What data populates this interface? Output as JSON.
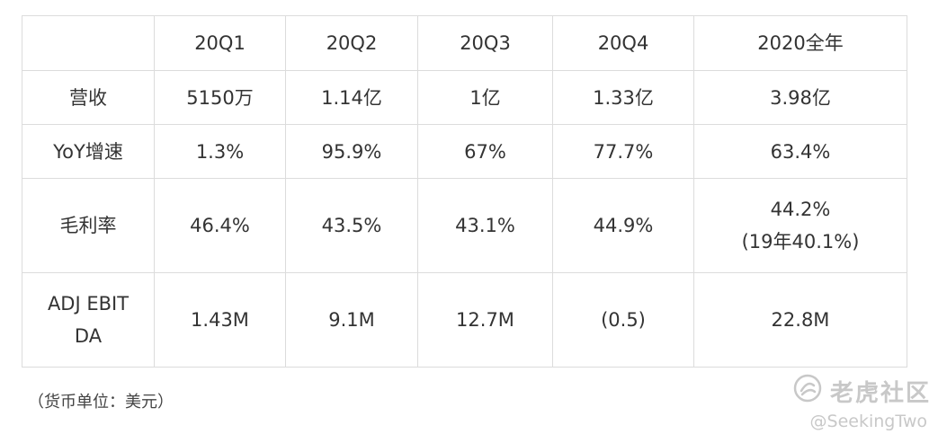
{
  "table": {
    "header": [
      "",
      "20Q1",
      "20Q2",
      "20Q3",
      "20Q4",
      "2020全年"
    ],
    "rows": [
      {
        "label": [
          "营收"
        ],
        "cells": [
          [
            "5150万"
          ],
          [
            "1.14亿"
          ],
          [
            "1亿"
          ],
          [
            "1.33亿"
          ],
          [
            "3.98亿"
          ]
        ]
      },
      {
        "label": [
          "YoY增速"
        ],
        "cells": [
          [
            "1.3%"
          ],
          [
            "95.9%"
          ],
          [
            "67%"
          ],
          [
            "77.7%"
          ],
          [
            "63.4%"
          ]
        ]
      },
      {
        "label": [
          "毛利率"
        ],
        "cells": [
          [
            "46.4%"
          ],
          [
            "43.5%"
          ],
          [
            "43.1%"
          ],
          [
            "44.9%"
          ],
          [
            "44.2%",
            "(19年40.1%)"
          ]
        ]
      },
      {
        "label": [
          "ADJ EBIT",
          "DA"
        ],
        "cells": [
          [
            "1.43M"
          ],
          [
            "9.1M"
          ],
          [
            "12.7M"
          ],
          [
            "(0.5)"
          ],
          [
            "22.8M"
          ]
        ]
      }
    ]
  },
  "note": "（货币单位：美元）",
  "watermark": {
    "logo_icon": "tiger-logo-icon",
    "brand": "老虎社区",
    "handle": "@SeekingTwo"
  }
}
